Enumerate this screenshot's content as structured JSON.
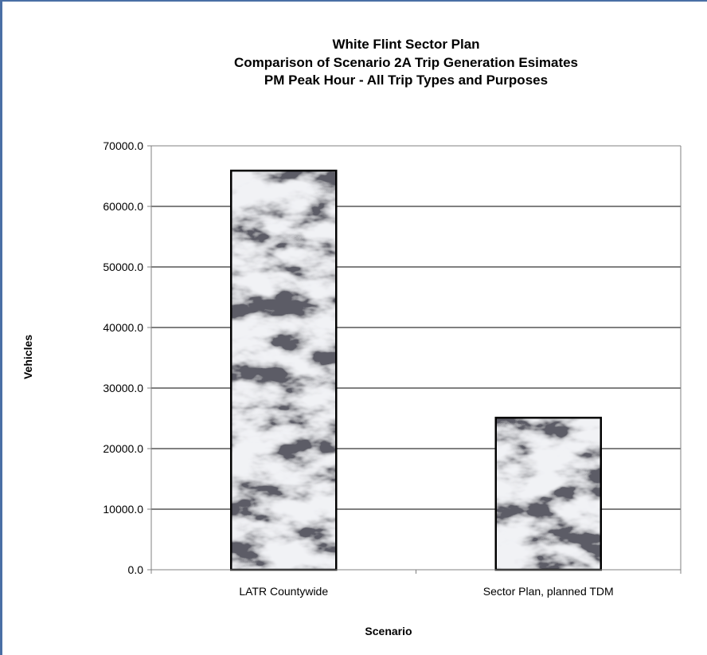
{
  "chart_data": {
    "type": "bar",
    "title_lines": [
      "White Flint Sector Plan",
      "Comparison of Scenario 2A Trip Generation Esimates",
      "PM Peak Hour - All Trip Types and Purposes"
    ],
    "categories": [
      "LATR Countywide",
      "Sector Plan, planned TDM"
    ],
    "values": [
      65900,
      25100
    ],
    "xlabel": "Scenario",
    "ylabel": "Vehicles",
    "ylim": [
      0,
      70000
    ],
    "yticks": [
      "0.0",
      "10000.0",
      "20000.0",
      "30000.0",
      "40000.0",
      "50000.0",
      "60000.0",
      "70000.0"
    ],
    "grid": true,
    "legend": "none",
    "bar_fill": "marble texture (white with grey veins)",
    "colors": {
      "frame": "#4a6fa5",
      "bar_outline": "#000000",
      "gridline": "#000000",
      "axis": "#808080"
    }
  }
}
